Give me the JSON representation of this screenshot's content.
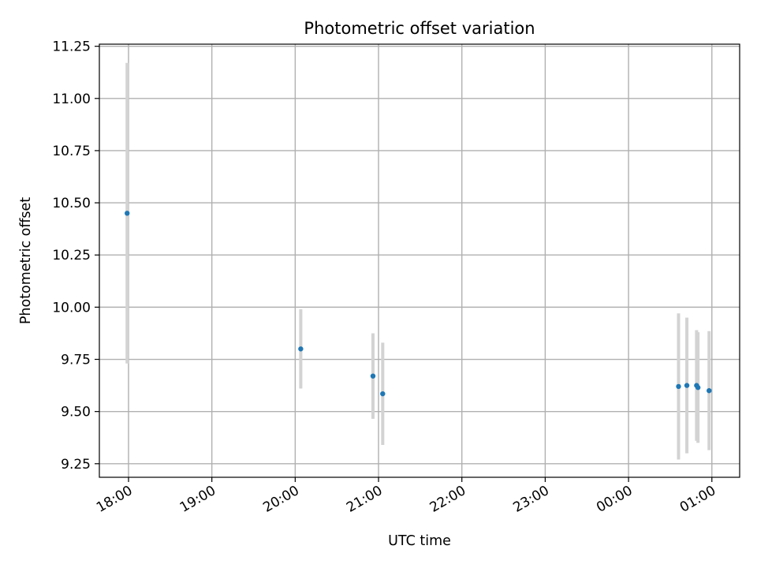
{
  "chart_data": {
    "type": "scatter",
    "title": "Photometric offset variation",
    "xlabel": "UTC time",
    "ylabel": "Photometric offset",
    "x_unit": "UTC time (HH:MM)",
    "xlim": [
      "17:39",
      "01:20"
    ],
    "ylim": [
      9.185,
      11.26
    ],
    "x_ticks": [
      "18:00",
      "19:00",
      "20:00",
      "21:00",
      "22:00",
      "23:00",
      "00:00",
      "01:00"
    ],
    "y_ticks": [
      "9.25",
      "9.50",
      "9.75",
      "10.00",
      "10.25",
      "10.50",
      "10.75",
      "11.00",
      "11.25"
    ],
    "grid": true,
    "series": [
      {
        "marker_color": "#1f77b4",
        "errorbar_color": "#d3d3d3",
        "points": [
          {
            "x": "17:59",
            "y": 10.45,
            "yerr": 0.72
          },
          {
            "x": "20:04",
            "y": 9.8,
            "yerr": 0.19
          },
          {
            "x": "20:56",
            "y": 9.67,
            "yerr": 0.205
          },
          {
            "x": "21:03",
            "y": 9.585,
            "yerr": 0.245
          },
          {
            "x": "00:36",
            "y": 9.62,
            "yerr": 0.35
          },
          {
            "x": "00:42",
            "y": 9.625,
            "yerr": 0.325
          },
          {
            "x": "00:49",
            "y": 9.625,
            "yerr": 0.265
          },
          {
            "x": "00:50",
            "y": 9.615,
            "yerr": 0.265
          },
          {
            "x": "00:58",
            "y": 9.6,
            "yerr": 0.285
          }
        ]
      }
    ]
  }
}
